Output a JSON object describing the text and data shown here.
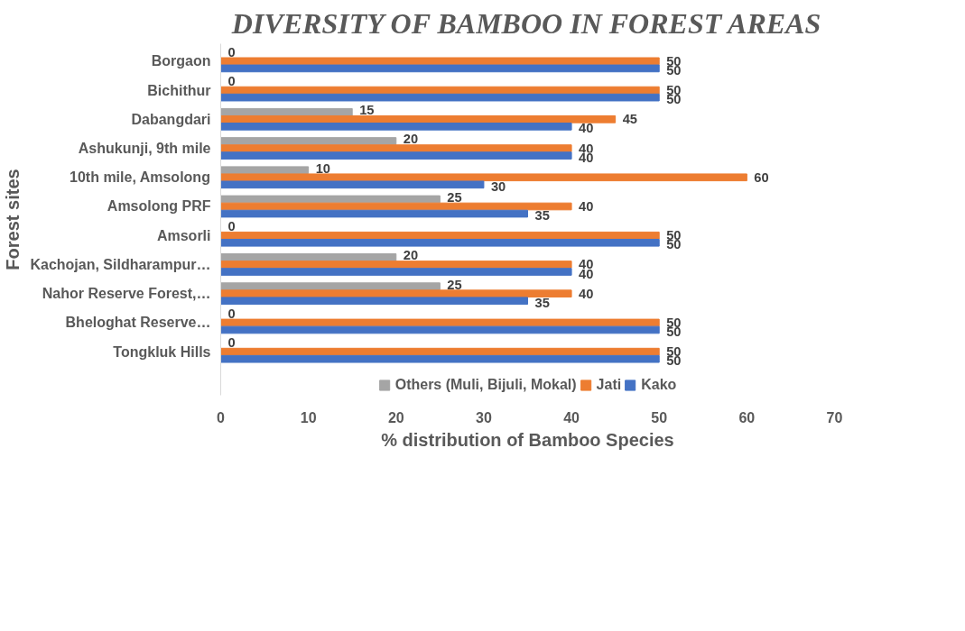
{
  "chart_data": {
    "type": "bar",
    "orientation": "horizontal",
    "title": "DIVERSITY OF BAMBOO IN FOREST AREAS",
    "xlabel": "% distribution of Bamboo Species",
    "ylabel": "Forest sites",
    "categories": [
      "Borgaon",
      "Bichithur",
      "Dabangdari",
      "Ashukunji, 9th mile",
      "10th mile, Amsolong",
      "Amsolong PRF",
      "Amsorli",
      "Kachojan, Sildharampur…",
      "Nahor Reserve Forest,…",
      "Bheloghat Reserve…",
      "Tongkluk Hills"
    ],
    "series": [
      {
        "name": "Others (Muli, Bijuli, Mokal)",
        "color": "#a5a5a5",
        "values": [
          0,
          0,
          15,
          20,
          10,
          25,
          0,
          20,
          25,
          0,
          0
        ]
      },
      {
        "name": "Jati",
        "color": "#ed7d31",
        "values": [
          50,
          50,
          45,
          40,
          60,
          40,
          50,
          40,
          40,
          50,
          50
        ]
      },
      {
        "name": "Kako",
        "color": "#4472c4",
        "values": [
          50,
          50,
          40,
          40,
          30,
          35,
          50,
          40,
          35,
          50,
          50
        ]
      }
    ],
    "xlim": [
      0,
      70
    ],
    "xticks": [
      0,
      10,
      20,
      30,
      40,
      50,
      60,
      70
    ],
    "grid": false,
    "legend": "bottom",
    "data_labels": true
  }
}
